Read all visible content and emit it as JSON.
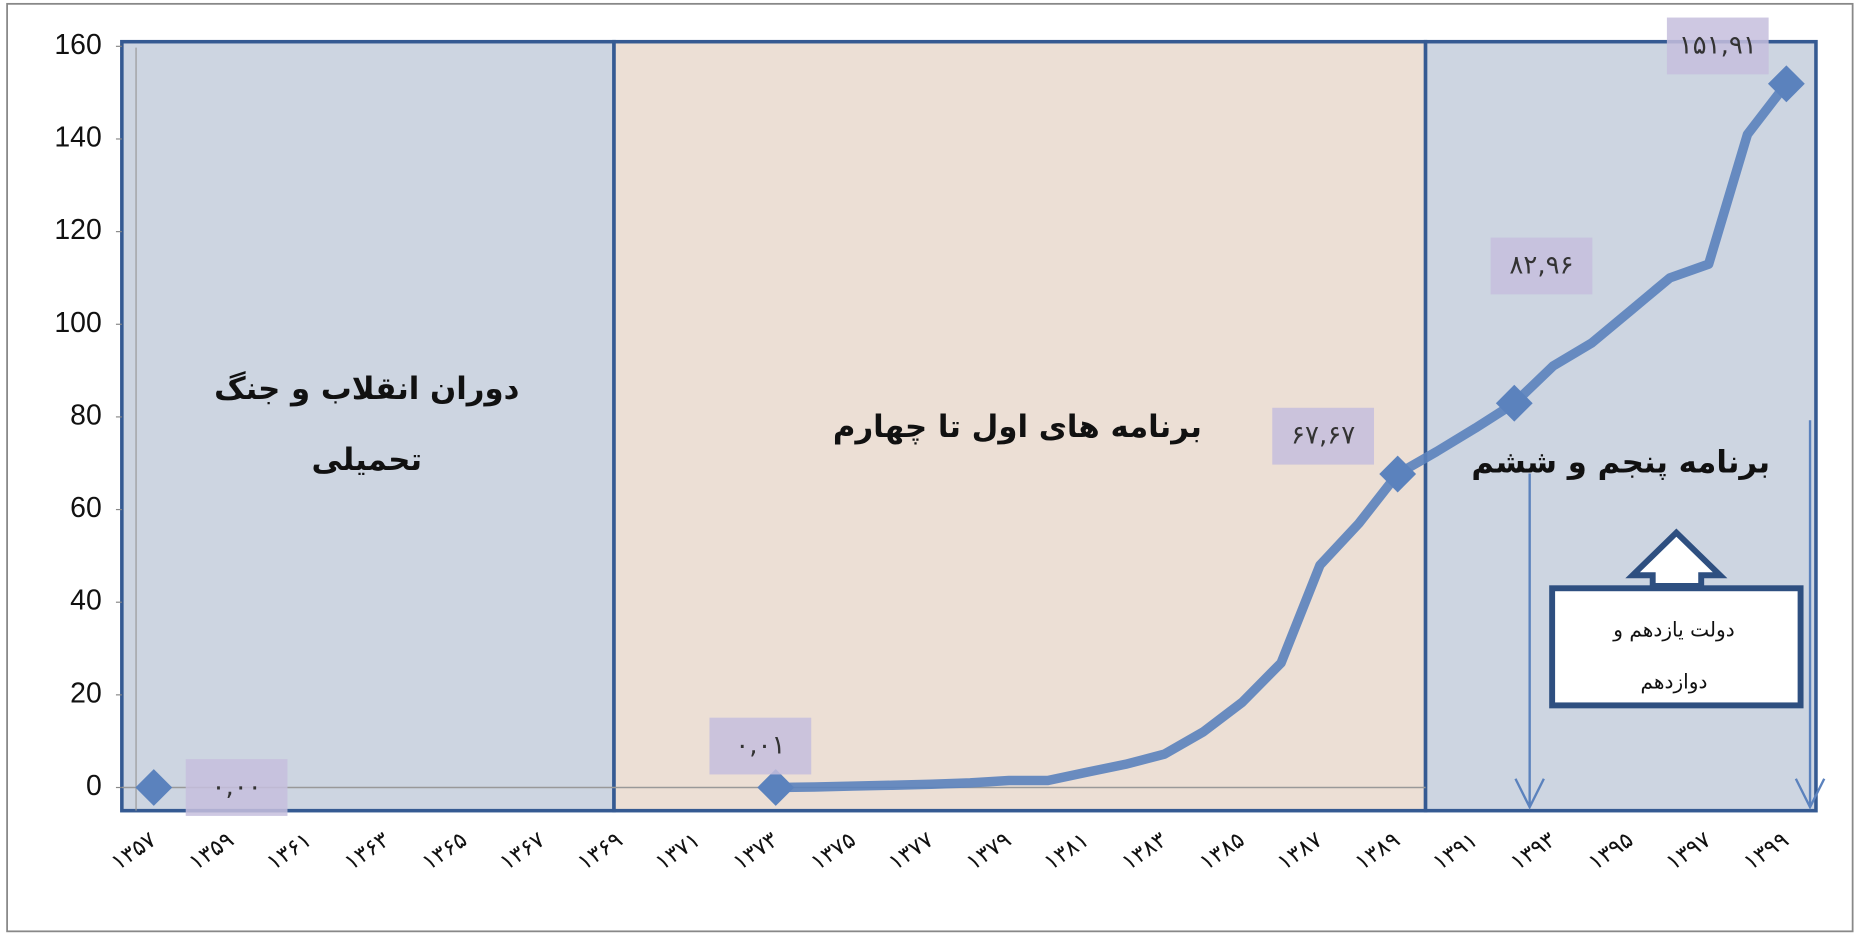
{
  "chart_data": {
    "type": "line",
    "categories": [
      "۱۳۵۷",
      null,
      "۱۳۵۹",
      null,
      "۱۳۶۱",
      null,
      "۱۳۶۳",
      null,
      "۱۳۶۵",
      null,
      "۱۳۶۷",
      null,
      "۱۳۶۹",
      null,
      "۱۳۷۱",
      null,
      "۱۳۷۳",
      null,
      "۱۳۷۵",
      null,
      "۱۳۷۷",
      null,
      "۱۳۷۹",
      null,
      "۱۳۸۱",
      null,
      "۱۳۸۳",
      null,
      "۱۳۸۵",
      null,
      "۱۳۸۷",
      null,
      "۱۳۸۹",
      null,
      "۱۳۹۱",
      null,
      "۱۳۹۳",
      null,
      "۱۳۹۵",
      null,
      "۱۳۹۷",
      null,
      "۱۳۹۹"
    ],
    "series": [
      {
        "color": "#5b82bd",
        "values": [
          0,
          null,
          null,
          null,
          null,
          null,
          null,
          null,
          null,
          null,
          null,
          null,
          null,
          null,
          null,
          null,
          0.01,
          0.1,
          0.3,
          0.5,
          0.7,
          1,
          1.5,
          1.5,
          3.3,
          5,
          7.2,
          12,
          18.4,
          26.9,
          48,
          57,
          67.67,
          72.5,
          77.6,
          82.96,
          91,
          96,
          103,
          110,
          113,
          141,
          151.91
        ],
        "value_labels": [
          "۰,۰۰",
          null,
          null,
          null,
          null,
          null,
          null,
          null,
          null,
          null,
          null,
          null,
          null,
          null,
          null,
          null,
          "۰,۰۱",
          null,
          null,
          null,
          null,
          null,
          null,
          null,
          null,
          null,
          null,
          null,
          null,
          null,
          null,
          null,
          "۶۷,۶۷",
          null,
          null,
          "۸۲,۹۶",
          null,
          null,
          null,
          null,
          null,
          null,
          "۱۵۱,۹۱"
        ]
      }
    ],
    "ylim": [
      -5,
      161
    ],
    "yticks": [
      0,
      20,
      40,
      60,
      80,
      100,
      120,
      140,
      160
    ],
    "annotations": [
      "دوران انقلاب و جنگ",
      "تحمیلی",
      "برنامه های اول تا چهارم",
      "برنامه پنجم و ششم",
      "دولت یازدهم و",
      "دوازدهم"
    ]
  }
}
